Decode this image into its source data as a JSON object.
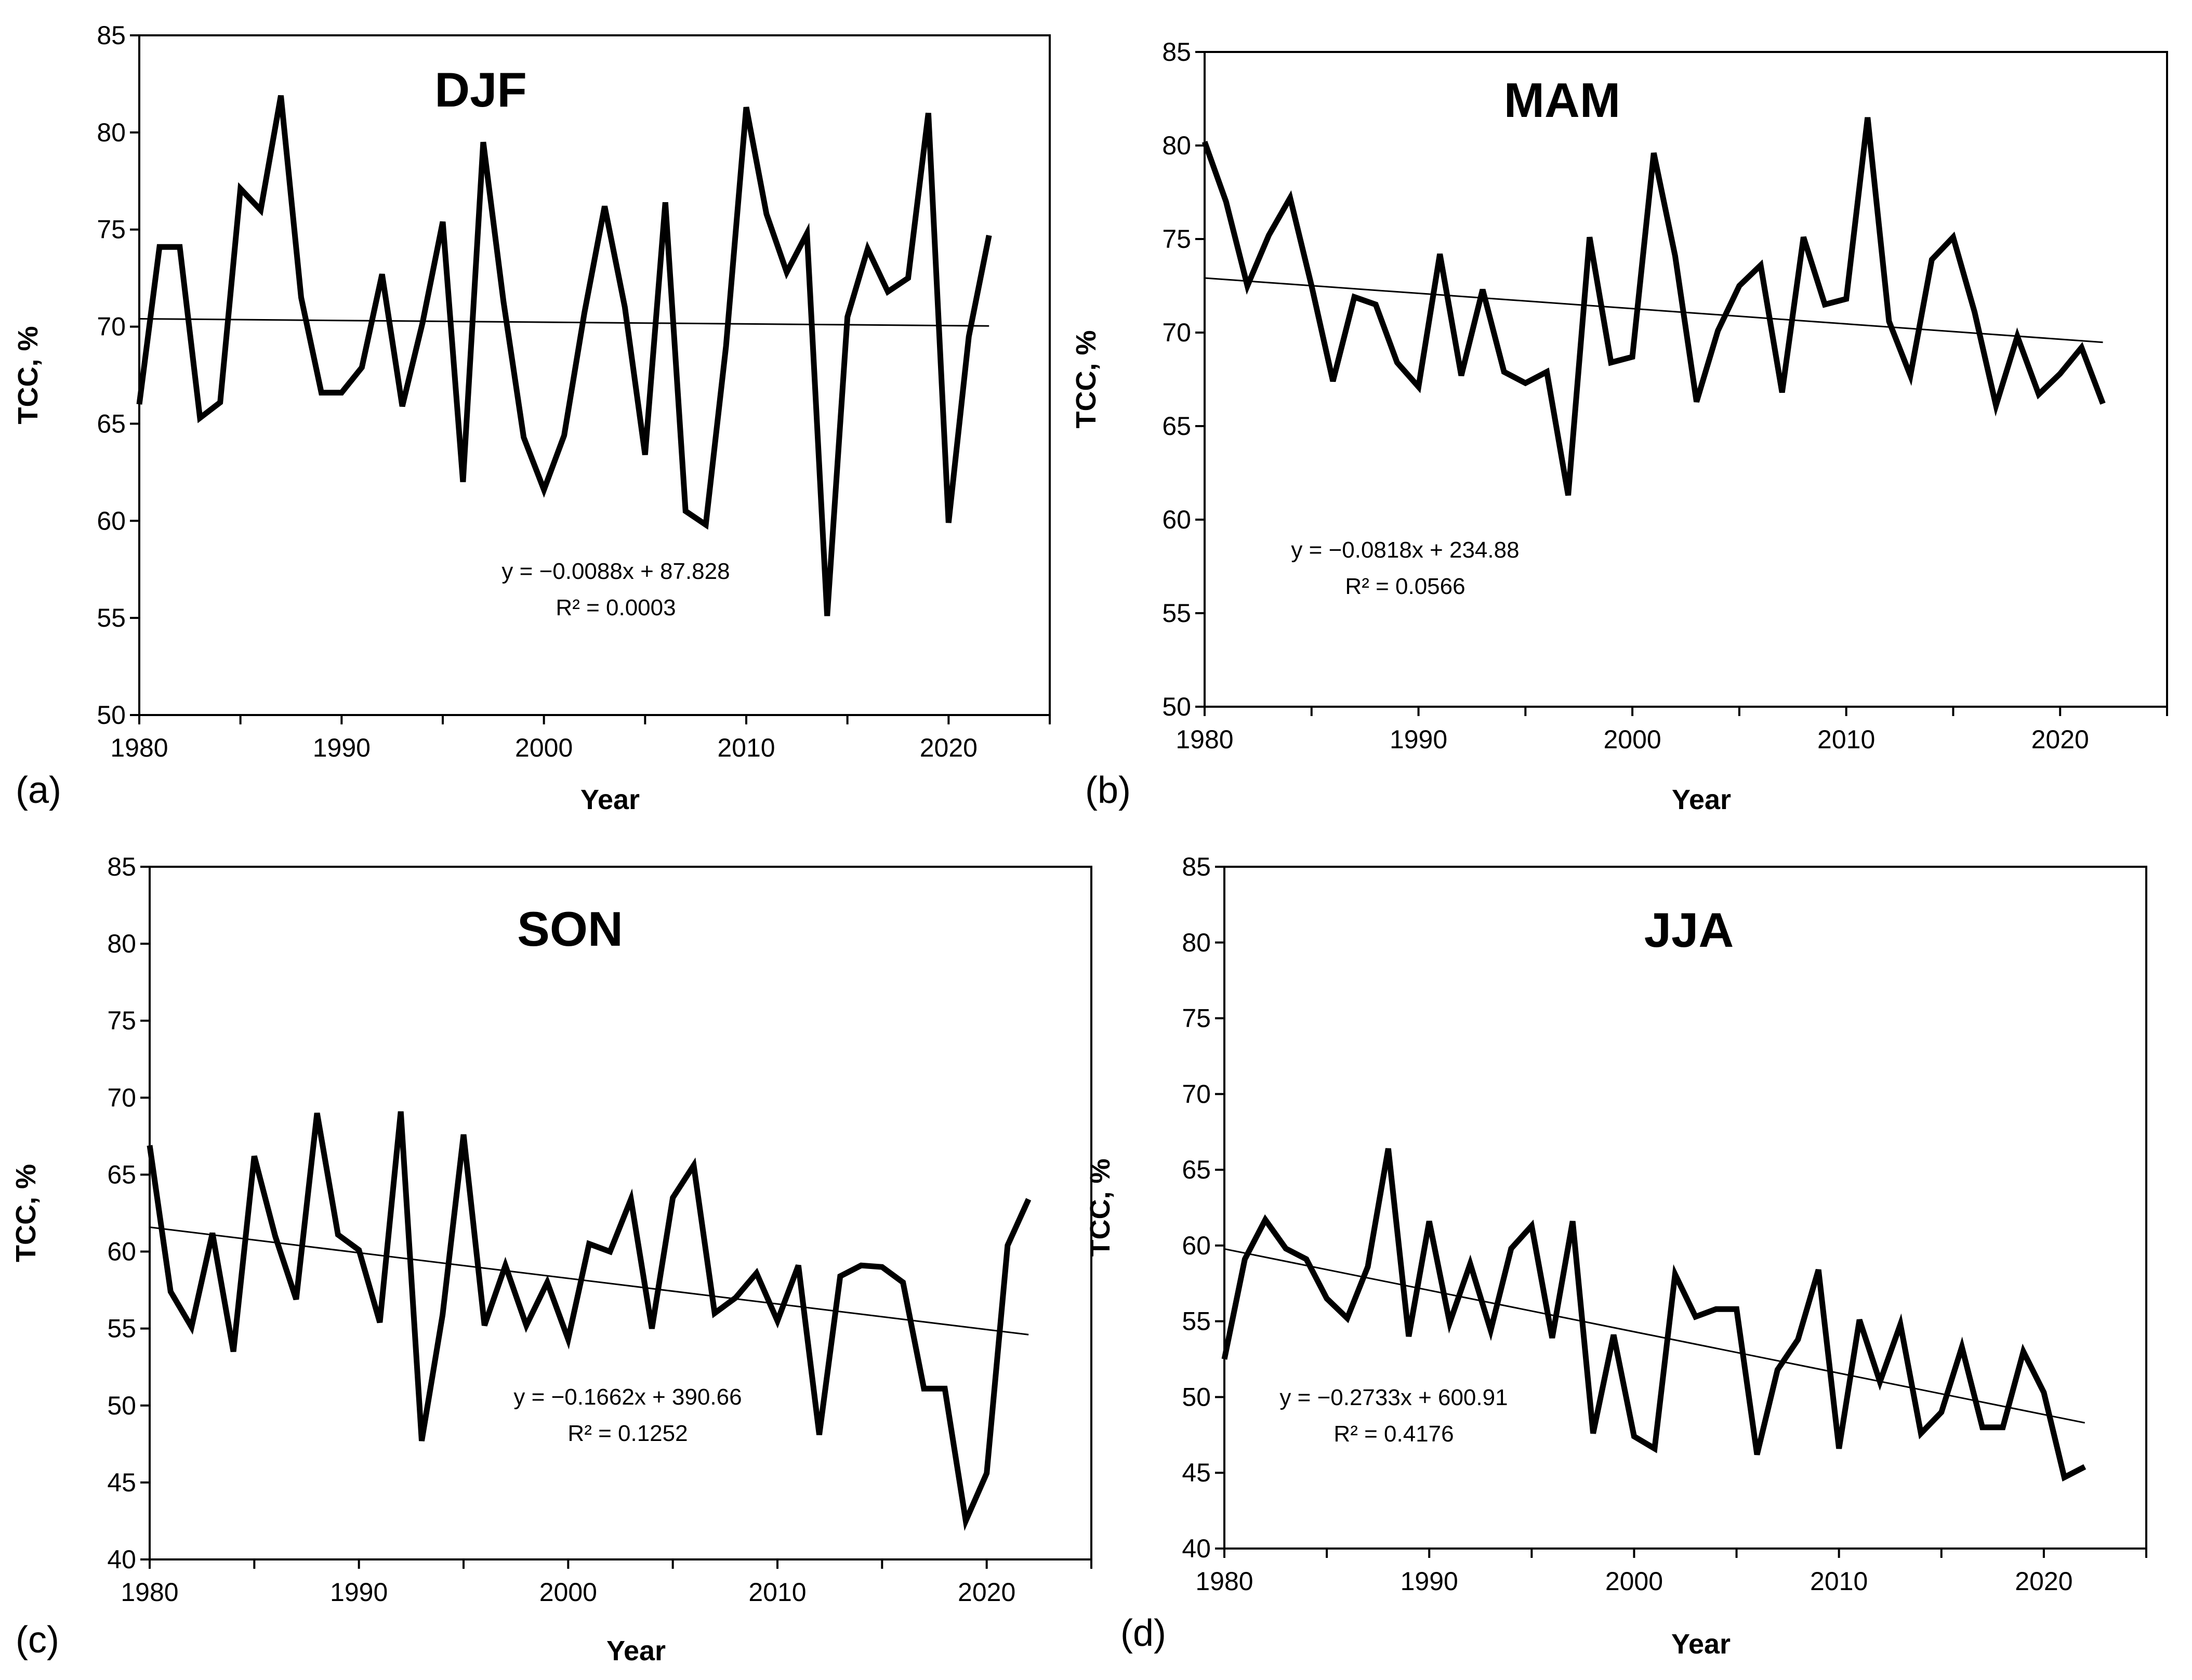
{
  "chart_data": [
    {
      "type": "line",
      "panel": "(a)",
      "title": "DJF",
      "xlabel": "Year",
      "ylabel": "TCC, %",
      "xlim": [
        1980,
        2025
      ],
      "ylim": [
        50,
        85
      ],
      "xticks": [
        1980,
        1990,
        2000,
        2010,
        2020
      ],
      "yticks": [
        50,
        55,
        60,
        65,
        70,
        75,
        80,
        85
      ],
      "equation": "y = −0.0088x + 87.828",
      "r2": "R² = 0.0003",
      "trend": {
        "slope": -0.0088,
        "intercept": 87.828
      },
      "x": [
        1980,
        1981,
        1982,
        1983,
        1984,
        1985,
        1986,
        1987,
        1988,
        1989,
        1990,
        1991,
        1992,
        1993,
        1994,
        1995,
        1996,
        1997,
        1998,
        1999,
        2000,
        2001,
        2002,
        2003,
        2004,
        2005,
        2006,
        2007,
        2008,
        2009,
        2010,
        2011,
        2012,
        2013,
        2014,
        2015,
        2016,
        2017,
        2018,
        2019,
        2020,
        2021,
        2022
      ],
      "series": [
        {
          "name": "DJF TCC",
          "values": [
            66,
            74.1,
            74.1,
            65.3,
            66.1,
            77.1,
            76,
            81.9,
            71.5,
            66.6,
            66.6,
            67.9,
            72.7,
            65.9,
            70.2,
            75.4,
            62,
            79.5,
            71.3,
            64.3,
            61.6,
            64.4,
            70.7,
            76.2,
            71,
            63.4,
            76.4,
            60.5,
            59.8,
            69,
            81.3,
            75.8,
            72.8,
            74.8,
            55.1,
            70.5,
            74,
            71.8,
            72.5,
            81,
            59.9,
            69.5,
            74.7
          ]
        }
      ]
    },
    {
      "type": "line",
      "panel": "(b)",
      "title": "MAM",
      "xlabel": "Year",
      "ylabel": "TCC, %",
      "xlim": [
        1980,
        2025
      ],
      "ylim": [
        50,
        85
      ],
      "xticks": [
        1980,
        1990,
        2000,
        2010,
        2020
      ],
      "yticks": [
        50,
        55,
        60,
        65,
        70,
        75,
        80,
        85
      ],
      "equation": "y = −0.0818x + 234.88",
      "r2": "R² = 0.0566",
      "trend": {
        "slope": -0.0818,
        "intercept": 234.88
      },
      "x": [
        1980,
        1981,
        1982,
        1983,
        1984,
        1985,
        1986,
        1987,
        1988,
        1989,
        1990,
        1991,
        1992,
        1993,
        1994,
        1995,
        1996,
        1997,
        1998,
        1999,
        2000,
        2001,
        2002,
        2003,
        2004,
        2005,
        2006,
        2007,
        2008,
        2009,
        2010,
        2011,
        2012,
        2013,
        2014,
        2015,
        2016,
        2017,
        2018,
        2019,
        2020,
        2021,
        2022
      ],
      "series": [
        {
          "name": "MAM TCC",
          "values": [
            80.2,
            77,
            72.5,
            75.2,
            77.2,
            72.5,
            67.4,
            71.9,
            71.5,
            68.4,
            67.1,
            74.2,
            67.7,
            72.3,
            67.9,
            67.3,
            67.9,
            61.3,
            75.1,
            68.4,
            68.7,
            79.6,
            74.1,
            66.3,
            70.1,
            72.5,
            73.6,
            66.8,
            75.1,
            71.5,
            71.8,
            81.5,
            70.6,
            67.7,
            73.9,
            75.1,
            71.1,
            66.1,
            69.8,
            66.7,
            67.8,
            69.2,
            66.2
          ]
        }
      ]
    },
    {
      "type": "line",
      "panel": "(c)",
      "title": "SON",
      "xlabel": "Year",
      "ylabel": "TCC, %",
      "xlim": [
        1980,
        2025
      ],
      "ylim": [
        40,
        85
      ],
      "xticks": [
        1980,
        1990,
        2000,
        2010,
        2020
      ],
      "yticks": [
        40,
        45,
        50,
        55,
        60,
        65,
        70,
        75,
        80,
        85
      ],
      "equation": "y = −0.1662x + 390.66",
      "r2": "R² = 0.1252",
      "trend": {
        "slope": -0.1662,
        "intercept": 390.66
      },
      "x": [
        1980,
        1981,
        1982,
        1983,
        1984,
        1985,
        1986,
        1987,
        1988,
        1989,
        1990,
        1991,
        1992,
        1993,
        1994,
        1995,
        1996,
        1997,
        1998,
        1999,
        2000,
        2001,
        2002,
        2003,
        2004,
        2005,
        2006,
        2007,
        2008,
        2009,
        2010,
        2011,
        2012,
        2013,
        2014,
        2015,
        2016,
        2017,
        2018,
        2019,
        2020,
        2021,
        2022
      ],
      "series": [
        {
          "name": "SON TCC",
          "values": [
            66.9,
            57.4,
            55.1,
            61.2,
            53.5,
            66.2,
            61,
            56.9,
            69,
            61.1,
            60.1,
            55.4,
            69.1,
            47.7,
            55.9,
            67.6,
            55.2,
            59.1,
            55.2,
            58,
            54.3,
            60.5,
            60,
            63.4,
            55,
            63.5,
            65.6,
            56,
            57,
            58.6,
            55.5,
            59.1,
            48.1,
            58.4,
            59.1,
            59,
            58,
            51.1,
            51.1,
            42.5,
            45.6,
            60.4,
            63.4
          ]
        }
      ]
    },
    {
      "type": "line",
      "panel": "(d)",
      "title": "JJA",
      "xlabel": "Year",
      "ylabel": "TCC, %",
      "xlim": [
        1980,
        2025
      ],
      "ylim": [
        40,
        85
      ],
      "xticks": [
        1980,
        1990,
        2000,
        2010,
        2020
      ],
      "yticks": [
        40,
        45,
        50,
        55,
        60,
        65,
        70,
        75,
        80,
        85
      ],
      "equation": "y = −0.2733x + 600.91",
      "r2": "R² = 0.4176",
      "trend": {
        "slope": -0.2733,
        "intercept": 600.91
      },
      "x": [
        1980,
        1981,
        1982,
        1983,
        1984,
        1985,
        1986,
        1987,
        1988,
        1989,
        1990,
        1991,
        1992,
        1993,
        1994,
        1995,
        1996,
        1997,
        1998,
        1999,
        2000,
        2001,
        2002,
        2003,
        2004,
        2005,
        2006,
        2007,
        2008,
        2009,
        2010,
        2011,
        2012,
        2013,
        2014,
        2015,
        2016,
        2017,
        2018,
        2019,
        2020,
        2021,
        2022
      ],
      "series": [
        {
          "name": "JJA TCC",
          "values": [
            52.5,
            59.1,
            61.7,
            59.8,
            59.1,
            56.5,
            55.2,
            58.6,
            66.4,
            54,
            61.6,
            54.9,
            58.8,
            54.4,
            59.8,
            61.3,
            53.9,
            61.6,
            47.6,
            54.1,
            47.4,
            46.6,
            58.1,
            55.3,
            55.8,
            55.8,
            46.2,
            51.8,
            53.8,
            58.4,
            46.6,
            55.1,
            51,
            54.8,
            47.6,
            49,
            53.3,
            48,
            48,
            53,
            50.3,
            44.7,
            45.4
          ]
        }
      ]
    }
  ]
}
